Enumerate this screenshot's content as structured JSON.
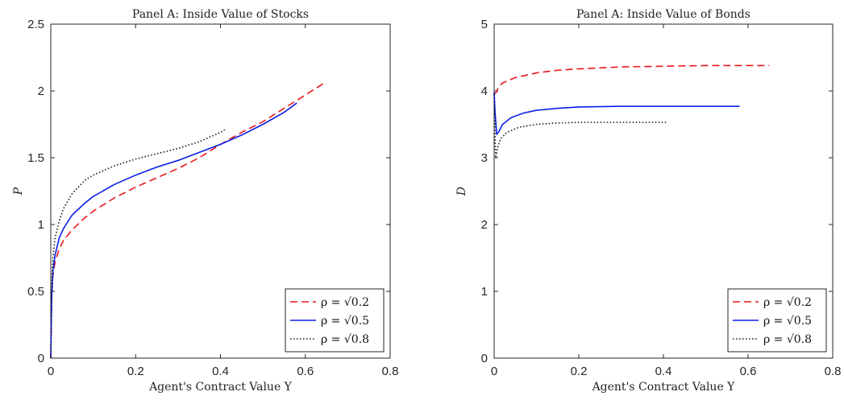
{
  "chart_data": [
    {
      "type": "line",
      "title": "Panel A: Inside Value of Stocks",
      "xlabel": "Agent's Contract Value Y",
      "ylabel": "P",
      "xlim": [
        0,
        0.8
      ],
      "ylim": [
        0,
        2.5
      ],
      "xticks": [
        0,
        0.2,
        0.4,
        0.6,
        0.8
      ],
      "xtick_labels": [
        "0",
        "0.2",
        "0.4",
        "0.6",
        "0.8"
      ],
      "yticks": [
        0,
        0.5,
        1,
        1.5,
        2,
        2.5
      ],
      "ytick_labels": [
        "0",
        "0.5",
        "1",
        "1.5",
        "2",
        "2.5"
      ],
      "grid": false,
      "legend_position": "bottom-right",
      "series": [
        {
          "name": "ρ = √0.2",
          "color": "#e8161b",
          "style": "dashed",
          "x": [
            0,
            0.002,
            0.005,
            0.01,
            0.02,
            0.03,
            0.05,
            0.08,
            0.1,
            0.15,
            0.2,
            0.25,
            0.3,
            0.35,
            0.4,
            0.45,
            0.5,
            0.55,
            0.6,
            0.645
          ],
          "y": [
            0,
            0.45,
            0.62,
            0.72,
            0.82,
            0.88,
            0.96,
            1.05,
            1.1,
            1.2,
            1.28,
            1.35,
            1.42,
            1.5,
            1.6,
            1.69,
            1.77,
            1.87,
            1.97,
            2.06
          ]
        },
        {
          "name": "ρ = √0.5",
          "color": "#0a1ee6",
          "style": "solid",
          "x": [
            0,
            0.002,
            0.005,
            0.01,
            0.02,
            0.03,
            0.05,
            0.08,
            0.1,
            0.15,
            0.2,
            0.25,
            0.3,
            0.35,
            0.4,
            0.45,
            0.5,
            0.55,
            0.58
          ],
          "y": [
            0,
            0.45,
            0.65,
            0.77,
            0.9,
            0.97,
            1.07,
            1.16,
            1.21,
            1.3,
            1.37,
            1.43,
            1.48,
            1.54,
            1.6,
            1.67,
            1.75,
            1.84,
            1.91
          ]
        },
        {
          "name": "ρ = √0.8",
          "color": "#111111",
          "style": "dotted",
          "x": [
            0,
            0.002,
            0.005,
            0.01,
            0.02,
            0.03,
            0.05,
            0.08,
            0.1,
            0.15,
            0.2,
            0.25,
            0.3,
            0.35,
            0.4,
            0.41
          ],
          "y": [
            0,
            0.5,
            0.75,
            0.9,
            1.03,
            1.12,
            1.23,
            1.33,
            1.37,
            1.44,
            1.49,
            1.53,
            1.57,
            1.62,
            1.69,
            1.71
          ]
        }
      ]
    },
    {
      "type": "line",
      "title": "Panel A: Inside Value of Bonds",
      "xlabel": "Agent's Contract Value Y",
      "ylabel": "D",
      "xlim": [
        0,
        0.8
      ],
      "ylim": [
        0,
        5
      ],
      "xticks": [
        0,
        0.2,
        0.4,
        0.6,
        0.8
      ],
      "xtick_labels": [
        "0",
        "0.2",
        "0.4",
        "0.6",
        "0.8"
      ],
      "yticks": [
        0,
        1,
        2,
        3,
        4,
        5
      ],
      "ytick_labels": [
        "0",
        "1",
        "2",
        "3",
        "4",
        "5"
      ],
      "grid": false,
      "legend_position": "bottom-right",
      "series": [
        {
          "name": "ρ = √0.2",
          "color": "#e8161b",
          "style": "dashed",
          "x": [
            0,
            0.005,
            0.01,
            0.02,
            0.05,
            0.1,
            0.15,
            0.2,
            0.3,
            0.4,
            0.5,
            0.6,
            0.65
          ],
          "y": [
            3.95,
            3.98,
            4.05,
            4.12,
            4.2,
            4.27,
            4.31,
            4.33,
            4.36,
            4.37,
            4.38,
            4.38,
            4.38
          ]
        },
        {
          "name": "ρ = √0.5",
          "color": "#0a1ee6",
          "style": "solid",
          "x": [
            0,
            0.002,
            0.006,
            0.01,
            0.02,
            0.04,
            0.07,
            0.1,
            0.15,
            0.2,
            0.3,
            0.4,
            0.5,
            0.58
          ],
          "y": [
            3.98,
            3.7,
            3.35,
            3.38,
            3.5,
            3.6,
            3.67,
            3.71,
            3.74,
            3.76,
            3.77,
            3.77,
            3.77,
            3.77
          ]
        },
        {
          "name": "ρ = √0.8",
          "color": "#111111",
          "style": "dotted",
          "x": [
            0,
            0.002,
            0.004,
            0.008,
            0.015,
            0.03,
            0.06,
            0.1,
            0.15,
            0.2,
            0.3,
            0.41
          ],
          "y": [
            3.95,
            3.3,
            3.0,
            3.15,
            3.28,
            3.38,
            3.46,
            3.5,
            3.52,
            3.53,
            3.53,
            3.53
          ]
        }
      ]
    }
  ]
}
